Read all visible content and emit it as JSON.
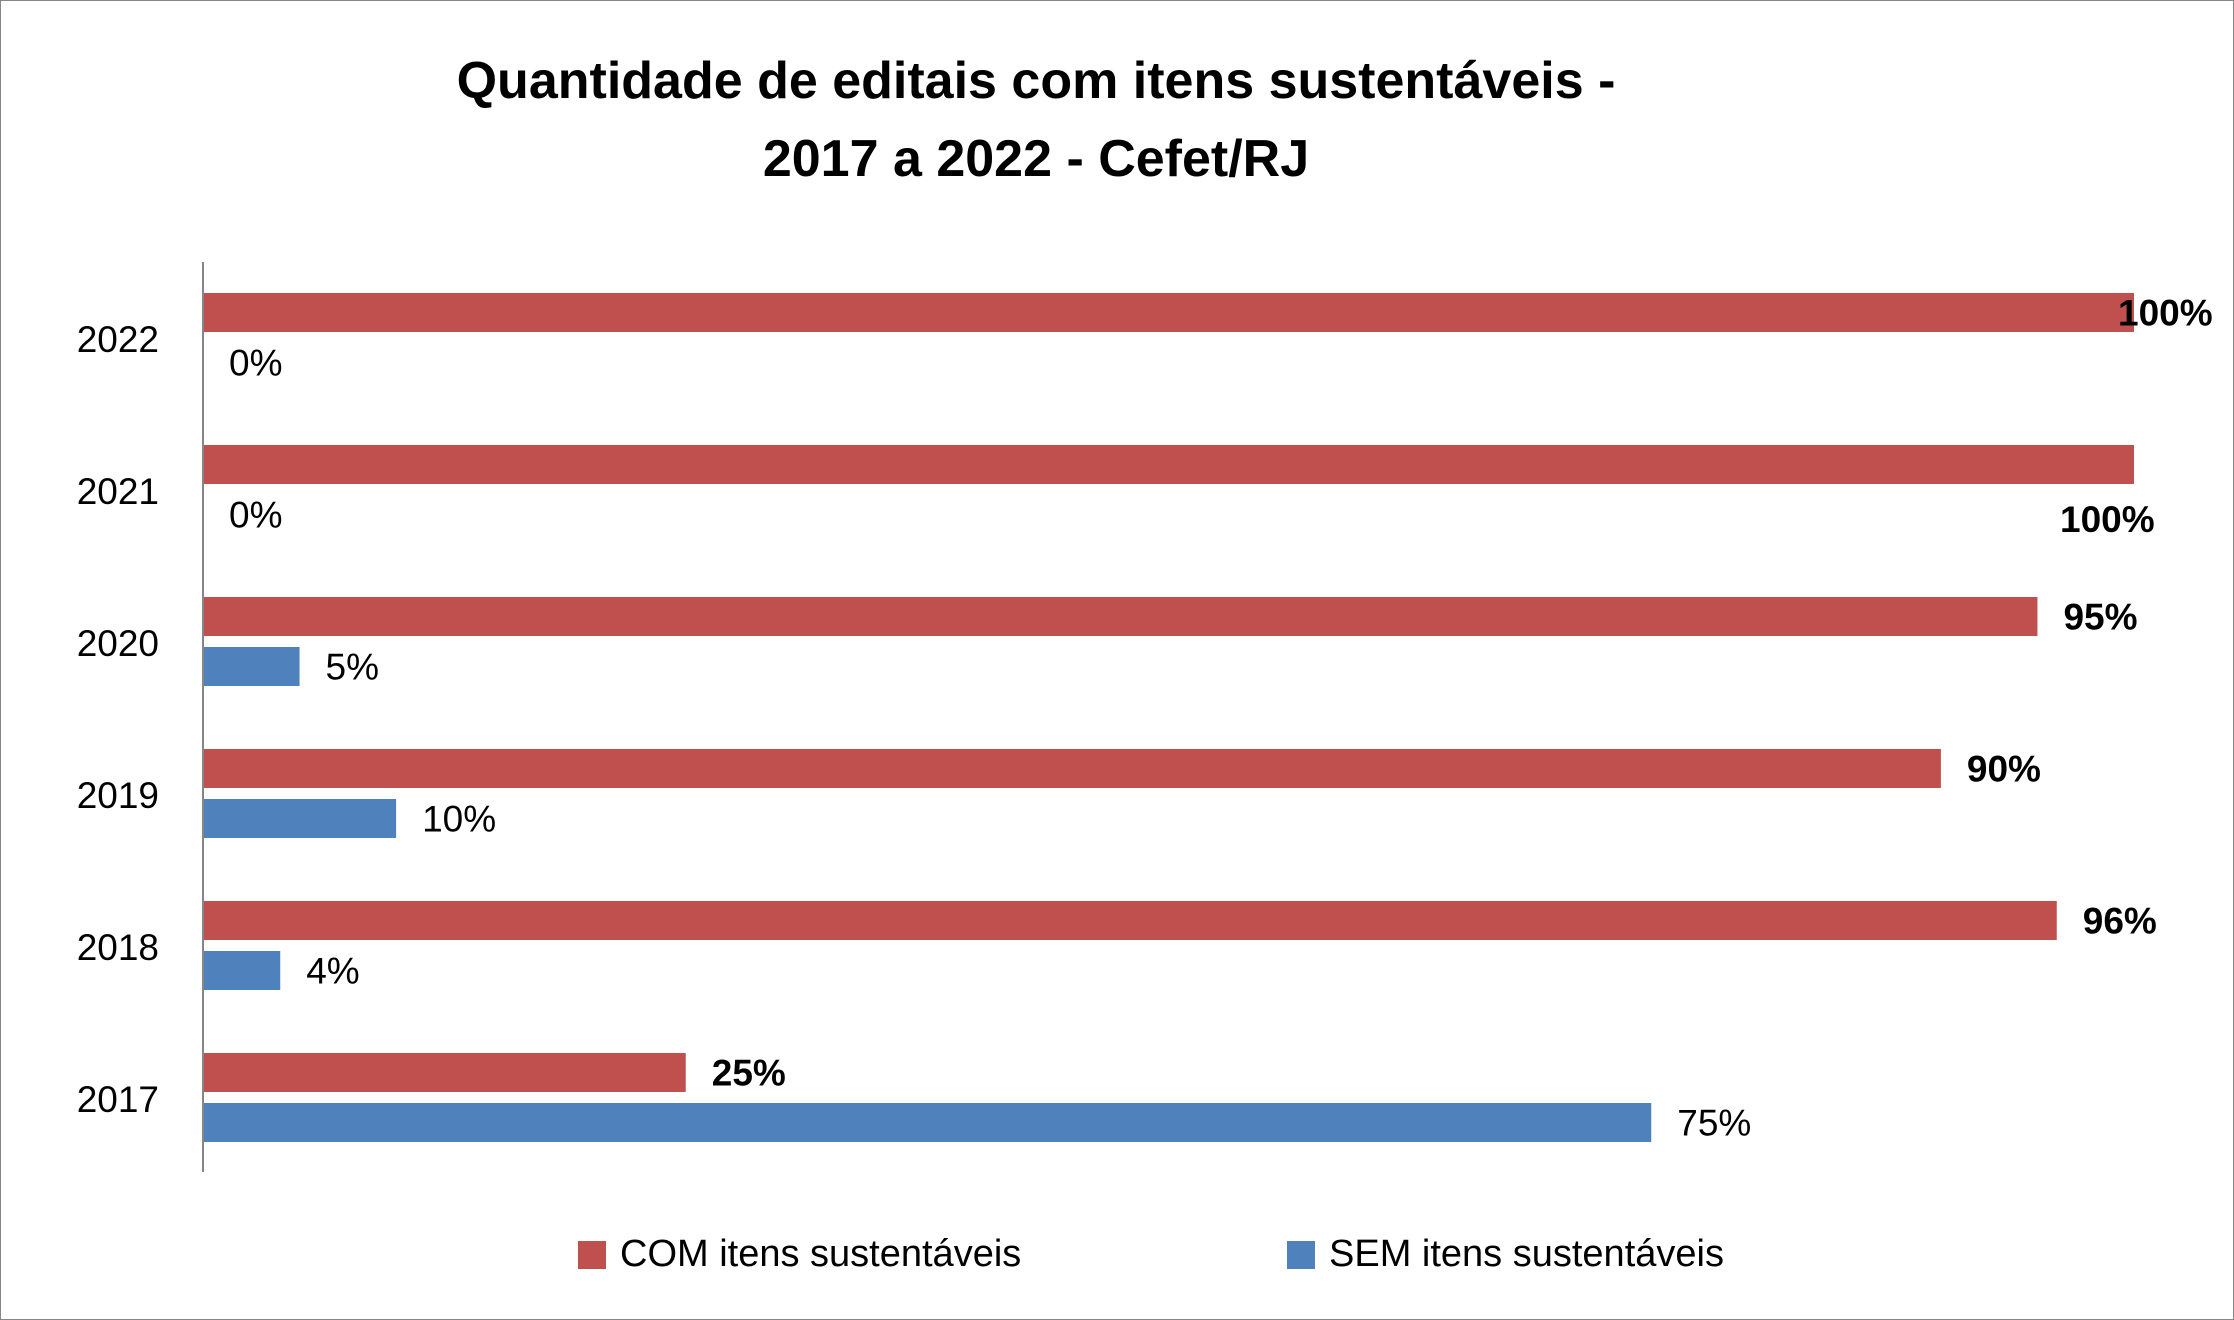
{
  "chart_data": {
    "type": "bar",
    "orientation": "horizontal",
    "title": "Quantidade de editais com itens sustentáveis - 2017 a 2022 - Cefet/RJ",
    "title_lines": [
      "Quantidade de editais com itens sustentáveis -",
      "2017 a 2022 - Cefet/RJ"
    ],
    "categories": [
      "2022",
      "2021",
      "2020",
      "2019",
      "2018",
      "2017"
    ],
    "series": [
      {
        "name": "COM itens sustentáveis",
        "color": "#C0504D",
        "values": [
          100,
          100,
          95,
          90,
          96,
          25
        ],
        "labels": [
          "100%",
          "100%",
          "95%",
          "90%",
          "96%",
          "25%"
        ]
      },
      {
        "name": "SEM itens sustentáveis",
        "color": "#4F81BD",
        "values": [
          0,
          0,
          5,
          10,
          4,
          75
        ],
        "labels": [
          "0%",
          "0%",
          "5%",
          "10%",
          "4%",
          "75%"
        ]
      }
    ],
    "xlim": [
      0,
      100
    ],
    "xlabel": "",
    "ylabel": "",
    "grid": false,
    "legend_position": "bottom"
  }
}
